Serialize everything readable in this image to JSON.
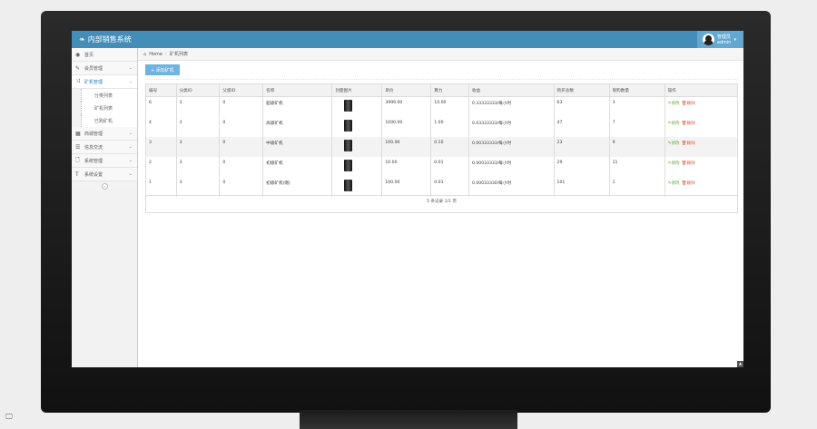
{
  "app": {
    "title": "内部销售系统",
    "user_name": "管理员",
    "user_role": "admin"
  },
  "sidebar": {
    "items": [
      {
        "label": "首页",
        "icon": "dashboard-icon"
      },
      {
        "label": "会员管理",
        "icon": "edit-icon"
      },
      {
        "label": "矿机管理",
        "icon": "shuffle-icon",
        "active": true,
        "children": [
          "分类列表",
          "矿机列表",
          "已购矿机"
        ]
      },
      {
        "label": "商城管理",
        "icon": "calendar-icon"
      },
      {
        "label": "信息交流",
        "icon": "list-icon"
      },
      {
        "label": "系统管理",
        "icon": "file-icon"
      },
      {
        "label": "系统设置",
        "icon": "text-icon"
      }
    ]
  },
  "breadcrumb": {
    "home": "Home",
    "current": "矿机列表"
  },
  "toolbar": {
    "add_label": "+ 添加矿机"
  },
  "table": {
    "headers": [
      "编号",
      "分类ID",
      "父级ID",
      "名称",
      "封面图片",
      "单价",
      "算力",
      "收益",
      "购买总数",
      "限购数量",
      "操作"
    ],
    "rows": [
      [
        "6",
        "3",
        "0",
        "超级矿机",
        "",
        "3999.00",
        "10.00",
        "0.33333333/每小时",
        "63",
        "3"
      ],
      [
        "4",
        "3",
        "0",
        "高级矿机",
        "",
        "1000.00",
        "1.00",
        "0.03333333/每小时",
        "47",
        "7"
      ],
      [
        "3",
        "3",
        "0",
        "中级矿机",
        "",
        "100.00",
        "0.10",
        "0.00333333/每小时",
        "23",
        "9"
      ],
      [
        "2",
        "3",
        "0",
        "初级矿机",
        "",
        "10.00",
        "0.01",
        "0.00033333/每小时",
        "29",
        "11"
      ],
      [
        "1",
        "3",
        "0",
        "初级矿机(赠)",
        "",
        "100.00",
        "0.01",
        "0.00033330/每小时",
        "101",
        "1"
      ]
    ],
    "edit_label": "修改",
    "delete_label": "删除",
    "footer": "5 条记录 1/1 页"
  },
  "colors": {
    "header": "#438eb9",
    "user_bg": "#62a8d1",
    "add_button": "#6fb3e0",
    "edit": "#69aa46",
    "delete": "#dd5a43"
  }
}
